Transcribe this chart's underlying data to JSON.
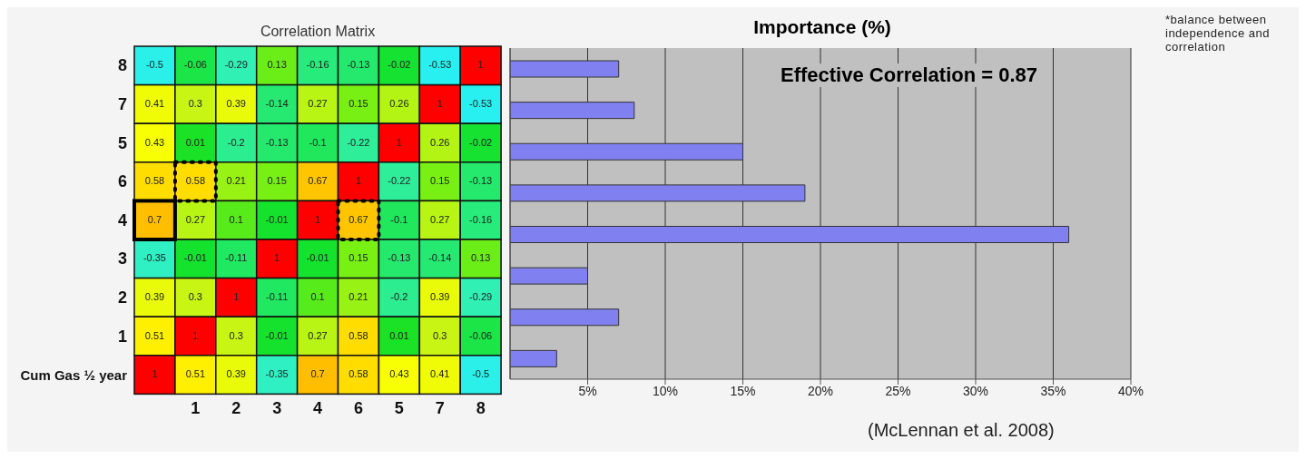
{
  "chart_data": [
    {
      "type": "heatmap",
      "title": "Correlation Matrix",
      "data_labels": true,
      "categories": [
        null,
        "1",
        "2",
        "3",
        "4",
        "6",
        "5",
        "7",
        "8"
      ],
      "y_categories": [
        "8",
        "7",
        "5",
        "6",
        "4",
        "3",
        "2",
        "1",
        "Cum Gas ½ year"
      ],
      "cells": [
        [
          -0.5,
          -0.06,
          -0.29,
          0.13,
          -0.16,
          -0.13,
          -0.02,
          -0.53,
          1
        ],
        [
          0.41,
          0.3,
          0.39,
          -0.14,
          0.27,
          0.15,
          0.26,
          1,
          -0.53
        ],
        [
          0.43,
          0.01,
          -0.2,
          -0.13,
          -0.1,
          -0.22,
          1,
          0.26,
          -0.02
        ],
        [
          0.58,
          0.58,
          0.21,
          0.15,
          0.67,
          1,
          -0.22,
          0.15,
          -0.13
        ],
        [
          0.7,
          0.27,
          0.1,
          -0.01,
          1,
          0.67,
          -0.1,
          0.27,
          -0.16
        ],
        [
          -0.35,
          -0.01,
          -0.11,
          1,
          -0.01,
          0.15,
          -0.13,
          -0.14,
          0.13
        ],
        [
          0.39,
          0.3,
          1,
          -0.11,
          0.1,
          0.21,
          -0.2,
          0.39,
          -0.29
        ],
        [
          0.51,
          1,
          0.3,
          -0.01,
          0.27,
          0.58,
          0.01,
          0.3,
          -0.06
        ],
        [
          1,
          0.51,
          0.39,
          -0.35,
          0.7,
          0.58,
          0.43,
          0.41,
          -0.5
        ]
      ]
    },
    {
      "type": "bar",
      "orientation": "horizontal",
      "title": "Importance (%)",
      "categories": [
        null,
        null,
        null,
        null,
        null,
        null,
        null,
        null
      ],
      "values": [
        7,
        8,
        15,
        19,
        36,
        5,
        7,
        3
      ],
      "color": "#8080f0",
      "xlim": [
        0,
        40
      ],
      "xticks": [
        {
          "value": 5,
          "label": "5%"
        },
        {
          "value": 10,
          "label": "10%"
        },
        {
          "value": 15,
          "label": "15%"
        },
        {
          "value": 20,
          "label": "20%"
        },
        {
          "value": 25,
          "label": "25%"
        },
        {
          "value": 30,
          "label": "30%"
        },
        {
          "value": 35,
          "label": "35%"
        },
        {
          "value": 40,
          "label": "40%"
        }
      ],
      "grid": "x",
      "annotations": [
        "Effective Correlation = 0.87",
        "*balance between independence and correlation",
        "(McLennan et al. 2008)"
      ]
    }
  ]
}
